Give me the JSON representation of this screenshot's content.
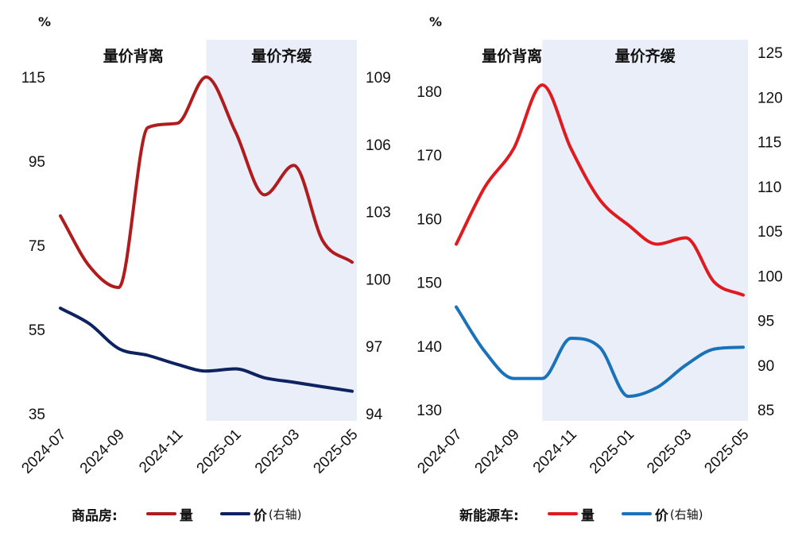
{
  "chart_data": [
    {
      "type": "line",
      "x": [
        "2024-07",
        "2024-08",
        "2024-09",
        "2024-10",
        "2024-11",
        "2024-12",
        "2025-01",
        "2025-02",
        "2025-03",
        "2025-04",
        "2025-05"
      ],
      "x_tick_labels": [
        "2024-07",
        "2024-09",
        "2024-11",
        "2025-01",
        "2025-03",
        "2025-05"
      ],
      "y_unit": "%",
      "y_left_ticks": [
        "115",
        "95",
        "75",
        "55",
        "35"
      ],
      "y_right_ticks": [
        "109",
        "106",
        "103",
        "100",
        "97",
        "94"
      ],
      "ylim_left": [
        35,
        115
      ],
      "ylim_right": [
        94,
        109
      ],
      "phases": [
        {
          "label": "量价背离",
          "shaded": false,
          "from": "2024-07",
          "to": "2024-12"
        },
        {
          "label": "量价齐缓",
          "shaded": true,
          "from": "2024-12",
          "to": "2025-05"
        }
      ],
      "series": [
        {
          "name": "量",
          "axis": "left",
          "color": "#b01c1e",
          "values": [
            82,
            70,
            65,
            103,
            104,
            115,
            102,
            87,
            94,
            76,
            71
          ]
        },
        {
          "name": "价",
          "axis": "right",
          "color": "#0d2260",
          "values": [
            98.7,
            98.0,
            96.9,
            96.6,
            96.2,
            95.9,
            96.0,
            95.6,
            95.4,
            95.2,
            95.0
          ]
        }
      ],
      "legend": {
        "title": "商品房:",
        "items": [
          "量",
          "价"
        ],
        "right_axis_suffix": "(右轴)",
        "position": "bottom"
      }
    },
    {
      "type": "line",
      "x": [
        "2024-07",
        "2024-08",
        "2024-09",
        "2024-10",
        "2024-11",
        "2024-12",
        "2025-01",
        "2025-02",
        "2025-03",
        "2025-04",
        "2025-05"
      ],
      "x_tick_labels": [
        "2024-07",
        "2024-09",
        "2024-11",
        "2025-01",
        "2025-03",
        "2025-05"
      ],
      "y_unit": "%",
      "y_left_ticks": [
        "180",
        "170",
        "160",
        "150",
        "140",
        "130"
      ],
      "y_right_ticks": [
        "125",
        "120",
        "115",
        "110",
        "105",
        "100",
        "95",
        "90",
        "85"
      ],
      "ylim_left": [
        130,
        181
      ],
      "ylim_right": [
        85,
        125
      ],
      "phases": [
        {
          "label": "量价背离",
          "shaded": false,
          "from": "2024-07",
          "to": "2024-10"
        },
        {
          "label": "量价齐缓",
          "shaded": true,
          "from": "2024-10",
          "to": "2025-05"
        }
      ],
      "series": [
        {
          "name": "量",
          "axis": "left",
          "color": "#e01b1f",
          "values": [
            156,
            165,
            171,
            181,
            171,
            163,
            159,
            156,
            157,
            150,
            148
          ]
        },
        {
          "name": "价",
          "axis": "right",
          "color": "#1a72bb",
          "values": [
            96.5,
            91.5,
            88.5,
            88.5,
            93.0,
            92.0,
            86.5,
            87.5,
            90.0,
            91.8,
            92.0
          ]
        }
      ],
      "legend": {
        "title": "新能源车:",
        "items": [
          "量",
          "价"
        ],
        "right_axis_suffix": "(右轴)",
        "position": "bottom"
      }
    }
  ]
}
